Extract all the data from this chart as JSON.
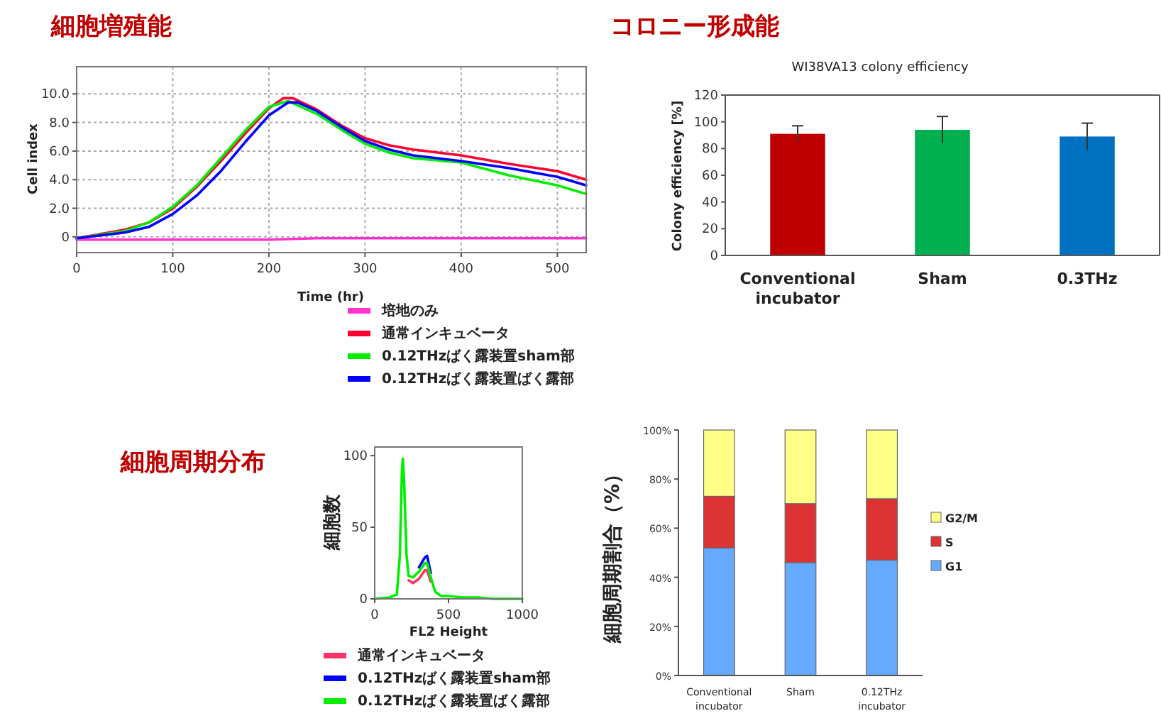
{
  "chart_data": [
    {
      "type": "line",
      "title": "細胞増殖能",
      "xlabel": "Time (hr)",
      "ylabel": "Cell index",
      "xlim": [
        0,
        530
      ],
      "ylim": [
        -1.1,
        11.9
      ],
      "xticks": [
        0,
        100,
        200,
        300,
        400,
        500
      ],
      "yticks": [
        0,
        {
          "value": 2,
          "label": "2.0"
        },
        {
          "value": 4,
          "label": "4.0"
        },
        {
          "value": 6,
          "label": "6.0"
        },
        {
          "value": 8,
          "label": "8.0"
        },
        {
          "value": 10,
          "label": "10.0"
        }
      ],
      "grid": true,
      "legend": "bottom right",
      "series": [
        {
          "name": "培地のみ",
          "color": "#ff33cc",
          "x": [
            0,
            200,
            250,
            530
          ],
          "values": [
            -0.2,
            -0.2,
            -0.1,
            -0.1
          ]
        },
        {
          "name": "通常インキュベータ",
          "color": "#ff0033",
          "x": [
            0,
            50,
            75,
            100,
            125,
            150,
            175,
            200,
            215,
            225,
            250,
            275,
            300,
            325,
            350,
            400,
            450,
            500,
            530
          ],
          "values": [
            -0.1,
            0.5,
            1.0,
            2.0,
            3.5,
            5.3,
            7.2,
            9.0,
            9.7,
            9.7,
            8.9,
            7.8,
            6.9,
            6.4,
            6.1,
            5.7,
            5.1,
            4.6,
            4.0
          ]
        },
        {
          "name": "0.12THzばく露装置sham部",
          "color": "#00ee00",
          "x": [
            0,
            50,
            75,
            100,
            125,
            150,
            175,
            200,
            220,
            250,
            275,
            300,
            325,
            350,
            400,
            450,
            500,
            530
          ],
          "values": [
            -0.1,
            0.4,
            1.0,
            2.1,
            3.6,
            5.5,
            7.4,
            9.1,
            9.5,
            8.6,
            7.5,
            6.5,
            5.9,
            5.5,
            5.2,
            4.3,
            3.6,
            3.0
          ]
        },
        {
          "name": "0.12THzばく露装置ばく露部",
          "color": "#0000ff",
          "x": [
            0,
            50,
            75,
            100,
            125,
            150,
            175,
            200,
            220,
            230,
            250,
            275,
            300,
            325,
            350,
            400,
            450,
            500,
            530
          ],
          "values": [
            -0.1,
            0.3,
            0.7,
            1.6,
            2.9,
            4.6,
            6.6,
            8.5,
            9.4,
            9.4,
            8.8,
            7.7,
            6.7,
            6.1,
            5.7,
            5.3,
            4.8,
            4.2,
            3.6
          ]
        }
      ]
    },
    {
      "type": "bar",
      "title": "コロニー形成能",
      "subtitle": "WI38VA13 colony efficiency",
      "ylabel": "Colony efficiency [%]",
      "ylim": [
        0,
        120
      ],
      "yticks": [
        0,
        20,
        40,
        60,
        80,
        100,
        120
      ],
      "categories": [
        "Conventional incubator",
        "Sham",
        "0.3THz"
      ],
      "values": [
        91,
        94,
        89
      ],
      "errors": [
        6,
        10,
        10
      ],
      "colors": [
        "#c00000",
        "#00b050",
        "#0070c0"
      ]
    },
    {
      "type": "line",
      "title": "細胞周期分布",
      "xlabel": "FL2 Height",
      "ylabel": "細胞数",
      "xlim": [
        0,
        1000
      ],
      "ylim": [
        0,
        106
      ],
      "xticks": [
        0,
        500,
        1000
      ],
      "yticks": [
        0,
        50,
        100
      ],
      "legend": "bottom",
      "series": [
        {
          "name": "通常インキュベータ",
          "color": "#ff3366",
          "x": [
            230,
            260,
            300,
            340,
            355,
            380
          ],
          "values": [
            13,
            11,
            14,
            20,
            20,
            12
          ]
        },
        {
          "name": "0.12THzばく露装置sham部",
          "color": "#0000ff",
          "x": [
            300,
            340,
            355,
            380
          ],
          "values": [
            22,
            29,
            30,
            18
          ]
        },
        {
          "name": "0.12THzばく露装置ばく露部",
          "color": "#00ee00",
          "x": [
            0,
            100,
            150,
            170,
            185,
            190,
            200,
            215,
            230,
            260,
            300,
            340,
            355,
            380,
            410,
            450,
            500,
            600,
            700,
            800,
            1000
          ],
          "values": [
            0,
            1,
            3,
            30,
            90,
            98,
            80,
            31,
            16,
            15,
            19,
            25,
            25,
            15,
            5,
            2,
            2,
            1,
            1,
            0,
            0
          ]
        }
      ]
    },
    {
      "type": "bar",
      "stacked": true,
      "ylabel": "細胞周期割合（%）",
      "ylim": [
        0,
        100
      ],
      "yticks": [
        {
          "value": 0,
          "label": "0%"
        },
        {
          "value": 20,
          "label": "20%"
        },
        {
          "value": 40,
          "label": "40%"
        },
        {
          "value": 60,
          "label": "60%"
        },
        {
          "value": 80,
          "label": "80%"
        },
        {
          "value": 100,
          "label": "100%"
        }
      ],
      "categories": [
        "Conventional incubator",
        "Sham",
        "0.12THz incubator"
      ],
      "legend": "right",
      "series": [
        {
          "name": "G1",
          "color": "#66aaff",
          "values": [
            52,
            46,
            47
          ]
        },
        {
          "name": "S",
          "color": "#dd3333",
          "values": [
            21,
            24,
            25
          ]
        },
        {
          "name": "G2/M",
          "color": "#ffff88",
          "values": [
            27,
            30,
            28
          ]
        }
      ]
    }
  ]
}
